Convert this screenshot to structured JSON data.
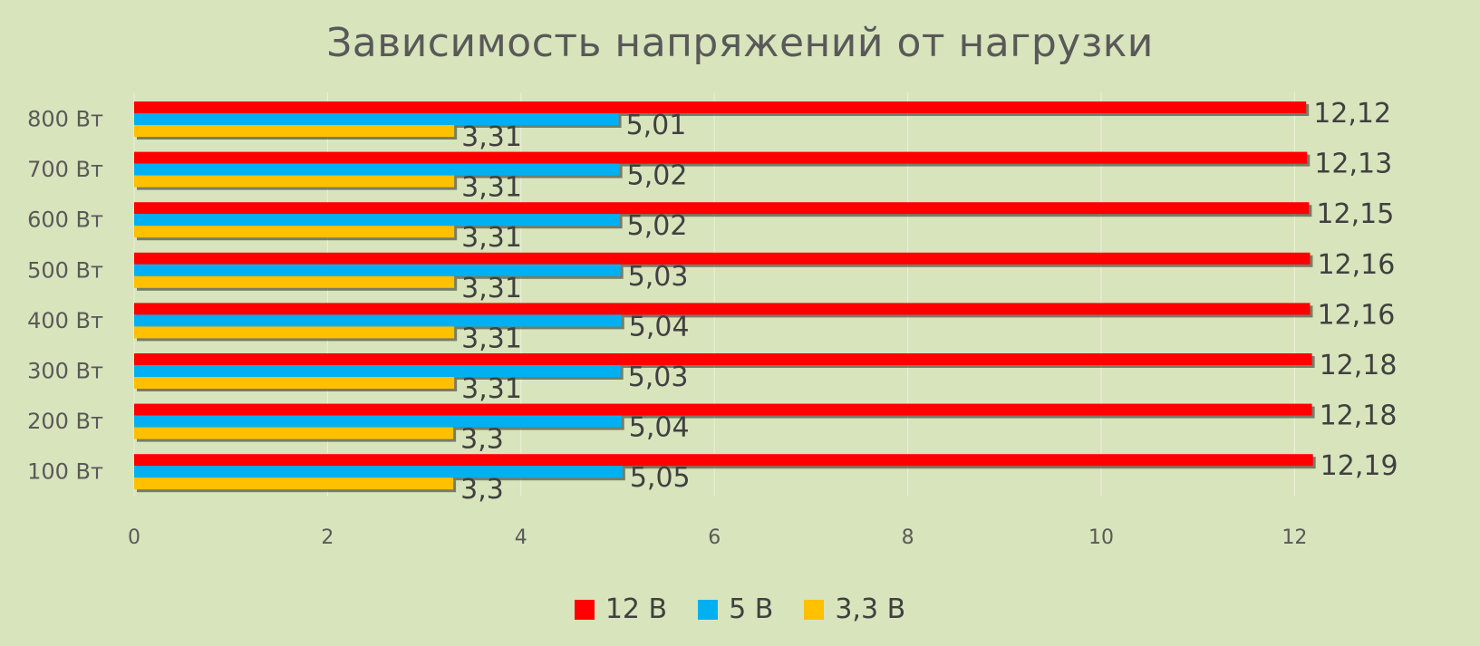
{
  "chart_data": {
    "type": "bar",
    "orientation": "horizontal",
    "title": "Зависимость напряжений от нагрузки",
    "categories": [
      "800 Вт",
      "700 Вт",
      "600 Вт",
      "500 Вт",
      "400 Вт",
      "300 Вт",
      "200 Вт",
      "100 Вт"
    ],
    "series": [
      {
        "name": "12 В",
        "color": "#ff0000",
        "labels": [
          "12,12",
          "12,13",
          "12,15",
          "12,16",
          "12,16",
          "12,18",
          "12,18",
          "12,19"
        ],
        "values": [
          12.12,
          12.13,
          12.15,
          12.16,
          12.16,
          12.18,
          12.18,
          12.19
        ]
      },
      {
        "name": "5 В",
        "color": "#00b0f0",
        "labels": [
          "5,01",
          "5,02",
          "5,02",
          "5,03",
          "5,04",
          "5,03",
          "5,04",
          "5,05"
        ],
        "values": [
          5.01,
          5.02,
          5.02,
          5.03,
          5.04,
          5.03,
          5.04,
          5.05
        ]
      },
      {
        "name": "3,3 В",
        "color": "#ffc000",
        "labels": [
          "3,31",
          "3,31",
          "3,31",
          "3,31",
          "3,31",
          "3,31",
          "3,3",
          "3,3"
        ],
        "values": [
          3.31,
          3.31,
          3.31,
          3.31,
          3.31,
          3.31,
          3.3,
          3.3
        ]
      }
    ],
    "x_ticks": [
      "0",
      "2",
      "4",
      "6",
      "8",
      "10",
      "12"
    ],
    "xlim": [
      0,
      12
    ],
    "grid": true,
    "legend_position": "bottom"
  }
}
